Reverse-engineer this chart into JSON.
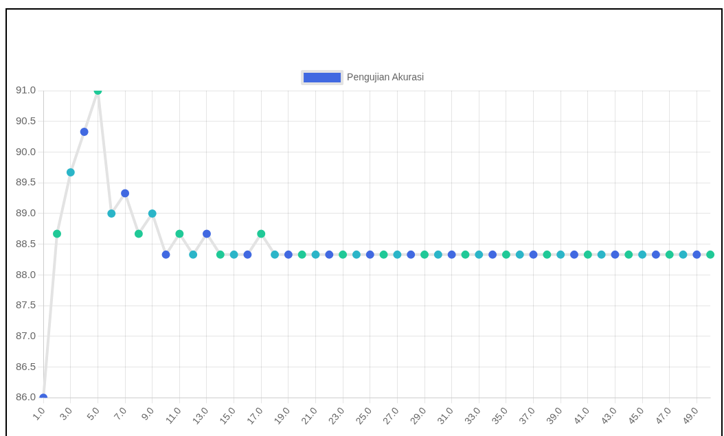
{
  "chart_data": {
    "type": "line",
    "categories": [
      "1.0",
      null,
      "3.0",
      null,
      "5.0",
      null,
      "7.0",
      null,
      "9.0",
      null,
      "11.0",
      null,
      "13.0",
      null,
      "15.0",
      null,
      "17.0",
      null,
      "19.0",
      null,
      "21.0",
      null,
      "23.0",
      null,
      "25.0",
      null,
      "27.0",
      null,
      "29.0",
      null,
      "31.0",
      null,
      "33.0",
      null,
      "35.0",
      null,
      "37.0",
      null,
      "39.0",
      null,
      "41.0",
      null,
      "43.0",
      null,
      "45.0",
      null,
      "47.0",
      null,
      "49.0",
      null
    ],
    "series": [
      {
        "name": "Pengujian Akurasi",
        "color": "#e3e3e3",
        "colors": [
          "#4169e1",
          "#20c997",
          "#2bb5c8",
          "#4169e1",
          "#20c997",
          "#2bb5c8",
          "#4169e1",
          "#20c997",
          "#2bb5c8",
          "#4169e1",
          "#20c997",
          "#2bb5c8",
          "#4169e1",
          "#20c997",
          "#2bb5c8",
          "#4169e1",
          "#20c997",
          "#2bb5c8",
          "#4169e1",
          "#20c997",
          "#2bb5c8",
          "#4169e1",
          "#20c997",
          "#2bb5c8",
          "#4169e1",
          "#20c997",
          "#2bb5c8",
          "#4169e1",
          "#20c997",
          "#2bb5c8",
          "#4169e1",
          "#20c997",
          "#2bb5c8",
          "#4169e1",
          "#20c997",
          "#2bb5c8",
          "#4169e1",
          "#20c997",
          "#2bb5c8",
          "#4169e1",
          "#20c997",
          "#2bb5c8",
          "#4169e1",
          "#20c997",
          "#2bb5c8",
          "#4169e1",
          "#20c997",
          "#2bb5c8",
          "#4169e1",
          "#20c997"
        ],
        "values": [
          86.0,
          88.67,
          89.67,
          90.33,
          91.0,
          89.0,
          89.33,
          88.67,
          89.0,
          88.33,
          88.67,
          88.33,
          88.67,
          88.33,
          88.33,
          88.33,
          88.67,
          88.33,
          88.33,
          88.33,
          88.33,
          88.33,
          88.33,
          88.33,
          88.33,
          88.33,
          88.33,
          88.33,
          88.33,
          88.33,
          88.33,
          88.33,
          88.33,
          88.33,
          88.33,
          88.33,
          88.33,
          88.33,
          88.33,
          88.33,
          88.33,
          88.33,
          88.33,
          88.33,
          88.33,
          88.33,
          88.33,
          88.33,
          88.33,
          88.33
        ]
      }
    ],
    "ylim": [
      86,
      91
    ],
    "yticks": [
      {
        "value": 86,
        "label": "86.0"
      },
      {
        "value": 86.5,
        "label": "86.5"
      },
      {
        "value": 87,
        "label": "87.0"
      },
      {
        "value": 87.5,
        "label": "87.5"
      },
      {
        "value": 88,
        "label": "88.0"
      },
      {
        "value": 88.5,
        "label": "88.5"
      },
      {
        "value": 89,
        "label": "89.0"
      },
      {
        "value": 89.5,
        "label": "89.5"
      },
      {
        "value": 90,
        "label": "90.0"
      },
      {
        "value": 90.5,
        "label": "90.5"
      },
      {
        "value": 91,
        "label": "91.0"
      }
    ],
    "grid": true,
    "legend": "top",
    "marker": "circle",
    "line_style": "solid"
  }
}
